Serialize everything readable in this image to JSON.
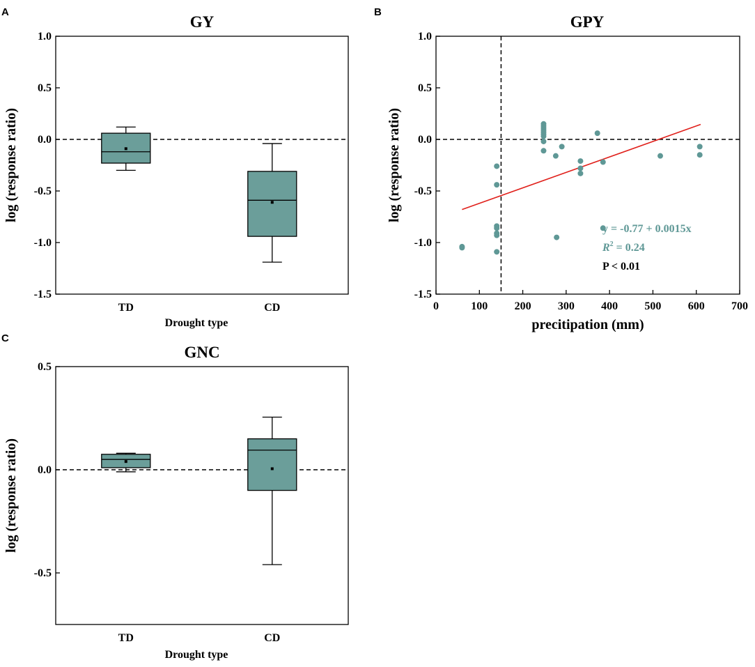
{
  "chart_data": [
    {
      "panel": "A",
      "type": "box",
      "title": "GY",
      "xlabel": "Drought type",
      "ylabel": "log (response ratio)",
      "ylim": [
        -1.5,
        1.0
      ],
      "yticks": [
        1.0,
        0.5,
        0.0,
        -0.5,
        -1.0,
        -1.5
      ],
      "ytick_labels": [
        "1.0",
        "0.5",
        "0.0",
        "-0.5",
        "-1.0",
        "-1.5"
      ],
      "reference_line": 0.0,
      "categories": [
        "TD",
        "CD"
      ],
      "boxes": [
        {
          "min": -0.3,
          "q1": -0.23,
          "median": -0.12,
          "q3": 0.06,
          "max": 0.12,
          "mean": -0.09
        },
        {
          "min": -1.19,
          "q1": -0.94,
          "median": -0.59,
          "q3": -0.31,
          "max": -0.04,
          "mean": -0.61
        }
      ]
    },
    {
      "panel": "B",
      "type": "scatter",
      "title": "GPY",
      "xlabel": "precitipation (mm)",
      "ylabel": "log (response ratio)",
      "xlim": [
        0,
        700
      ],
      "ylim": [
        -1.5,
        1.0
      ],
      "xticks": [
        0,
        100,
        200,
        300,
        400,
        500,
        600,
        700
      ],
      "xtick_labels": [
        "0",
        "100",
        "200",
        "300",
        "400",
        "500",
        "600",
        "700"
      ],
      "yticks": [
        1.0,
        0.5,
        0.0,
        -0.5,
        -1.0,
        -1.5
      ],
      "ytick_labels": [
        "1.0",
        "0.5",
        "0.0",
        "-0.5",
        "-1.0",
        "-1.5"
      ],
      "reference_hline": 0.0,
      "reference_vline": 150,
      "points": [
        [
          60,
          -1.04
        ],
        [
          60,
          -1.05
        ],
        [
          140,
          -0.26
        ],
        [
          140,
          -0.44
        ],
        [
          140,
          -0.84
        ],
        [
          140,
          -0.86
        ],
        [
          140,
          -0.91
        ],
        [
          140,
          -0.93
        ],
        [
          140,
          -1.09
        ],
        [
          248,
          0.15
        ],
        [
          248,
          0.13
        ],
        [
          248,
          0.11
        ],
        [
          248,
          0.09
        ],
        [
          248,
          0.07
        ],
        [
          248,
          0.05
        ],
        [
          248,
          0.03
        ],
        [
          248,
          -0.02
        ],
        [
          248,
          -0.11
        ],
        [
          276,
          -0.16
        ],
        [
          278,
          -0.95
        ],
        [
          290,
          -0.07
        ],
        [
          333,
          -0.21
        ],
        [
          333,
          -0.28
        ],
        [
          333,
          -0.33
        ],
        [
          372,
          0.06
        ],
        [
          385,
          -0.22
        ],
        [
          385,
          -0.86
        ],
        [
          517,
          -0.16
        ],
        [
          608,
          -0.07
        ],
        [
          608,
          -0.15
        ]
      ],
      "fit": {
        "x_start": 60,
        "x_end": 610,
        "intercept": -0.77,
        "slope": 0.0015
      },
      "annotations": {
        "equation": "y = -0.77 + 0.0015x",
        "r2_symbol": "R",
        "r2_sup": "2",
        "r2_value": " = 0.24",
        "p_value": "P < 0.01"
      },
      "colors": {
        "points": "#5f9896",
        "fit": "#e0201b",
        "annotation": "#5f9896"
      }
    },
    {
      "panel": "C",
      "type": "box",
      "title": "GNC",
      "xlabel": "Drought type",
      "ylabel": "log (response ratio)",
      "ylim": [
        -0.75,
        0.5
      ],
      "yticks": [
        0.5,
        0.0,
        -0.5
      ],
      "ytick_labels": [
        "0.5",
        "0.0",
        "-0.5"
      ],
      "reference_line": 0.0,
      "categories": [
        "TD",
        "CD"
      ],
      "boxes": [
        {
          "min": -0.01,
          "q1": 0.01,
          "median": 0.05,
          "q3": 0.075,
          "max": 0.08,
          "mean": 0.04
        },
        {
          "min": -0.46,
          "q1": -0.1,
          "median": 0.095,
          "q3": 0.15,
          "max": 0.255,
          "mean": 0.005
        }
      ]
    }
  ],
  "colors": {
    "box_fill": "#6b9e9a"
  }
}
